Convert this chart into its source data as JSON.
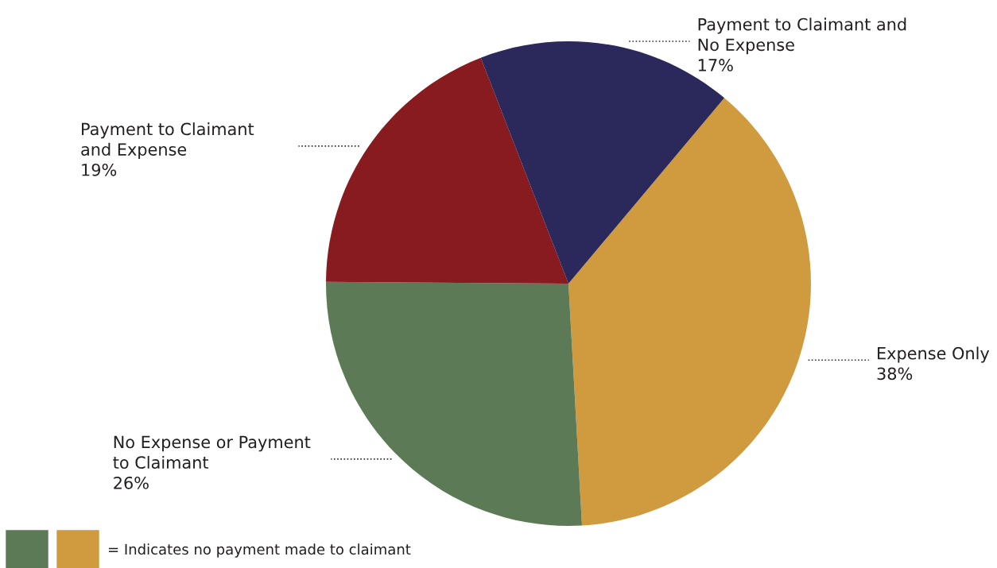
{
  "chart_data": {
    "type": "pie",
    "categories": [
      "Expense Only",
      "No Expense or Payment\nto Claimant",
      "Payment to Claimant\nand Expense",
      "Payment to Claimant and\nNo Expense"
    ],
    "values": [
      38,
      26,
      19,
      17
    ],
    "value_labels": [
      "38%",
      "26%",
      "19%",
      "17%"
    ],
    "colors": [
      "#d09b3f",
      "#5c7a56",
      "#871b1f",
      "#2b285c"
    ],
    "annotations": [
      "= Indicates no payment made to claimant"
    ]
  }
}
